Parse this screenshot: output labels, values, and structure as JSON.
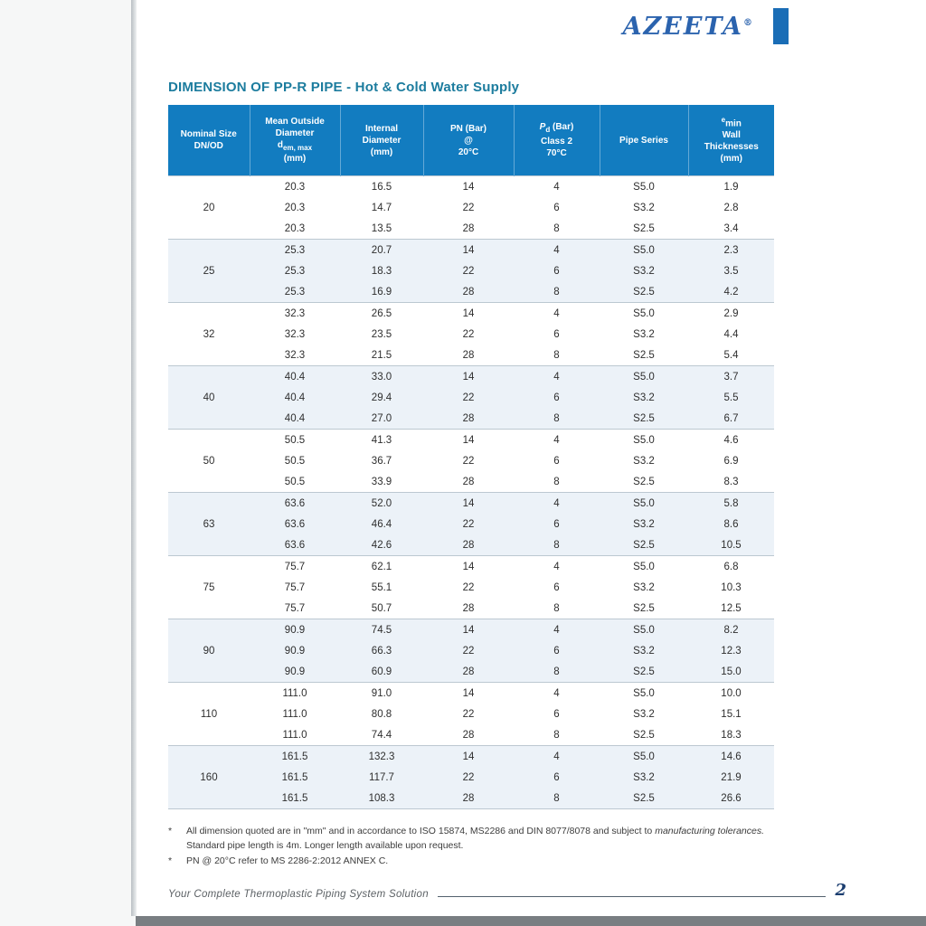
{
  "brand": {
    "logo_text": "AZEETA",
    "registered_mark": "®"
  },
  "page": {
    "title": "DIMENSION OF PP-R PIPE - Hot & Cold Water Supply"
  },
  "table": {
    "headers": {
      "nominal_size": {
        "line1": "Nominal Size",
        "line2": "DN/OD"
      },
      "mean_outside_diameter": {
        "line1": "Mean Outside",
        "line2": "Diameter",
        "symbol": "d",
        "symbol_sub": "em, max",
        "unit": "(mm)"
      },
      "internal_diameter": {
        "line1": "Internal",
        "line2": "Diameter",
        "unit": "(mm)"
      },
      "pn": {
        "line1": "PN (Bar)",
        "line2": "@",
        "line3": "20°C"
      },
      "pd": {
        "symbol": "P",
        "symbol_sub": "d",
        "rest": " (Bar)",
        "line2": "Class 2",
        "line3": "70°C"
      },
      "pipe_series": {
        "line1": "Pipe Series"
      },
      "emin": {
        "sup": "e",
        "rest": "min",
        "line2": "Wall",
        "line3": "Thicknesses",
        "unit": "(mm)"
      }
    },
    "groups": [
      {
        "size": "20",
        "rows": [
          {
            "od": "20.3",
            "id": "16.5",
            "pn": "14",
            "pd": "4",
            "series": "S5.0",
            "emin": "1.9"
          },
          {
            "od": "20.3",
            "id": "14.7",
            "pn": "22",
            "pd": "6",
            "series": "S3.2",
            "emin": "2.8"
          },
          {
            "od": "20.3",
            "id": "13.5",
            "pn": "28",
            "pd": "8",
            "series": "S2.5",
            "emin": "3.4"
          }
        ]
      },
      {
        "size": "25",
        "rows": [
          {
            "od": "25.3",
            "id": "20.7",
            "pn": "14",
            "pd": "4",
            "series": "S5.0",
            "emin": "2.3"
          },
          {
            "od": "25.3",
            "id": "18.3",
            "pn": "22",
            "pd": "6",
            "series": "S3.2",
            "emin": "3.5"
          },
          {
            "od": "25.3",
            "id": "16.9",
            "pn": "28",
            "pd": "8",
            "series": "S2.5",
            "emin": "4.2"
          }
        ]
      },
      {
        "size": "32",
        "rows": [
          {
            "od": "32.3",
            "id": "26.5",
            "pn": "14",
            "pd": "4",
            "series": "S5.0",
            "emin": "2.9"
          },
          {
            "od": "32.3",
            "id": "23.5",
            "pn": "22",
            "pd": "6",
            "series": "S3.2",
            "emin": "4.4"
          },
          {
            "od": "32.3",
            "id": "21.5",
            "pn": "28",
            "pd": "8",
            "series": "S2.5",
            "emin": "5.4"
          }
        ]
      },
      {
        "size": "40",
        "rows": [
          {
            "od": "40.4",
            "id": "33.0",
            "pn": "14",
            "pd": "4",
            "series": "S5.0",
            "emin": "3.7"
          },
          {
            "od": "40.4",
            "id": "29.4",
            "pn": "22",
            "pd": "6",
            "series": "S3.2",
            "emin": "5.5"
          },
          {
            "od": "40.4",
            "id": "27.0",
            "pn": "28",
            "pd": "8",
            "series": "S2.5",
            "emin": "6.7"
          }
        ]
      },
      {
        "size": "50",
        "rows": [
          {
            "od": "50.5",
            "id": "41.3",
            "pn": "14",
            "pd": "4",
            "series": "S5.0",
            "emin": "4.6"
          },
          {
            "od": "50.5",
            "id": "36.7",
            "pn": "22",
            "pd": "6",
            "series": "S3.2",
            "emin": "6.9"
          },
          {
            "od": "50.5",
            "id": "33.9",
            "pn": "28",
            "pd": "8",
            "series": "S2.5",
            "emin": "8.3"
          }
        ]
      },
      {
        "size": "63",
        "rows": [
          {
            "od": "63.6",
            "id": "52.0",
            "pn": "14",
            "pd": "4",
            "series": "S5.0",
            "emin": "5.8"
          },
          {
            "od": "63.6",
            "id": "46.4",
            "pn": "22",
            "pd": "6",
            "series": "S3.2",
            "emin": "8.6"
          },
          {
            "od": "63.6",
            "id": "42.6",
            "pn": "28",
            "pd": "8",
            "series": "S2.5",
            "emin": "10.5"
          }
        ]
      },
      {
        "size": "75",
        "rows": [
          {
            "od": "75.7",
            "id": "62.1",
            "pn": "14",
            "pd": "4",
            "series": "S5.0",
            "emin": "6.8"
          },
          {
            "od": "75.7",
            "id": "55.1",
            "pn": "22",
            "pd": "6",
            "series": "S3.2",
            "emin": "10.3"
          },
          {
            "od": "75.7",
            "id": "50.7",
            "pn": "28",
            "pd": "8",
            "series": "S2.5",
            "emin": "12.5"
          }
        ]
      },
      {
        "size": "90",
        "rows": [
          {
            "od": "90.9",
            "id": "74.5",
            "pn": "14",
            "pd": "4",
            "series": "S5.0",
            "emin": "8.2"
          },
          {
            "od": "90.9",
            "id": "66.3",
            "pn": "22",
            "pd": "6",
            "series": "S3.2",
            "emin": "12.3"
          },
          {
            "od": "90.9",
            "id": "60.9",
            "pn": "28",
            "pd": "8",
            "series": "S2.5",
            "emin": "15.0"
          }
        ]
      },
      {
        "size": "110",
        "rows": [
          {
            "od": "111.0",
            "id": "91.0",
            "pn": "14",
            "pd": "4",
            "series": "S5.0",
            "emin": "10.0"
          },
          {
            "od": "111.0",
            "id": "80.8",
            "pn": "22",
            "pd": "6",
            "series": "S3.2",
            "emin": "15.1"
          },
          {
            "od": "111.0",
            "id": "74.4",
            "pn": "28",
            "pd": "8",
            "series": "S2.5",
            "emin": "18.3"
          }
        ]
      },
      {
        "size": "160",
        "rows": [
          {
            "od": "161.5",
            "id": "132.3",
            "pn": "14",
            "pd": "4",
            "series": "S5.0",
            "emin": "14.6"
          },
          {
            "od": "161.5",
            "id": "117.7",
            "pn": "22",
            "pd": "6",
            "series": "S3.2",
            "emin": "21.9"
          },
          {
            "od": "161.5",
            "id": "108.3",
            "pn": "28",
            "pd": "8",
            "series": "S2.5",
            "emin": "26.6"
          }
        ]
      }
    ]
  },
  "footnotes": {
    "fn1": {
      "marker": "*",
      "part1": "All dimension quoted are in \"mm\" and in accordance to ISO 15874, MS2286 and DIN 8077/8078 and subject to ",
      "italic": "manufacturing tolerances.",
      "part2": " Standard pipe length is 4m. Longer length available upon request."
    },
    "fn2": {
      "marker": "*",
      "text": "PN @ 20°C refer to MS 2286-2:2012 ANNEX C."
    }
  },
  "footer": {
    "tagline": "Your Complete Thermoplastic Piping System Solution",
    "page_number": "2"
  }
}
